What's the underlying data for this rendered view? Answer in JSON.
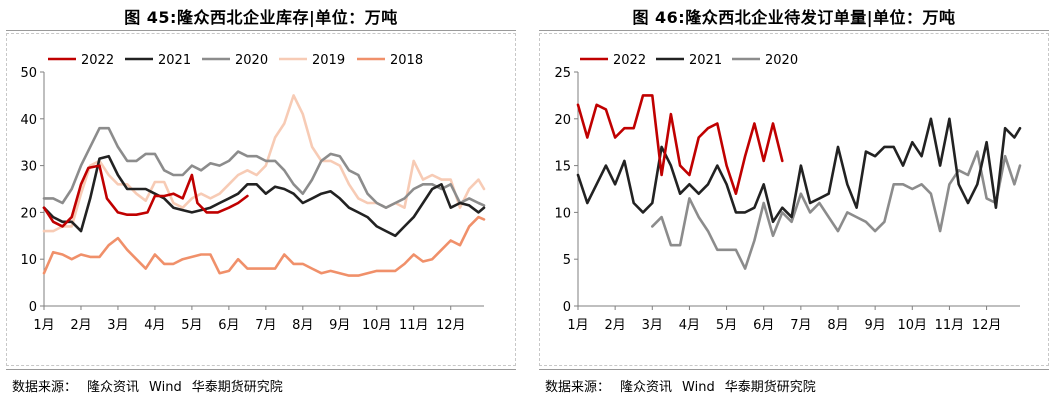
{
  "charts": [
    {
      "title": "图 45:隆众西北企业库存|单位：万吨",
      "source_label": "数据来源：",
      "source_items": [
        "隆众资讯",
        "Wind",
        "华泰期货研究院"
      ]
    },
    {
      "title": "图 46:隆众西北企业待发订单量|单位：万吨",
      "source_label": "数据来源：",
      "source_items": [
        "隆众资讯",
        "Wind",
        "华泰期货研究院"
      ]
    }
  ],
  "chart_data": [
    {
      "type": "line",
      "title": "图 45:隆众西北企业库存|单位：万吨",
      "xlabel": "",
      "ylabel": "",
      "x_ticks": [
        "1月",
        "2月",
        "3月",
        "4月",
        "5月",
        "6月",
        "7月",
        "8月",
        "9月",
        "10月",
        "11月",
        "12月"
      ],
      "x_range": [
        1,
        12.9
      ],
      "ylim": [
        0,
        50
      ],
      "y_ticks": [
        0,
        10,
        20,
        30,
        40,
        50
      ],
      "grid": false,
      "legend_position": "top",
      "series": [
        {
          "name": "2022",
          "color": "#c00000",
          "x": [
            1,
            1.25,
            1.5,
            1.75,
            2,
            2.2,
            2.5,
            2.7,
            3,
            3.25,
            3.5,
            3.8,
            4,
            4.25,
            4.5,
            4.75,
            5,
            5.15,
            5.4,
            5.7,
            6,
            6.25,
            6.5
          ],
          "y": [
            21,
            18,
            17,
            19,
            26,
            29.5,
            30,
            23,
            20,
            19.5,
            19.5,
            20,
            23.5,
            23.5,
            24,
            23,
            28,
            22,
            20,
            20,
            21,
            22,
            23.5
          ]
        },
        {
          "name": "2021",
          "color": "#222222",
          "x": [
            1,
            1.25,
            1.5,
            1.75,
            2,
            2.25,
            2.5,
            2.75,
            3,
            3.25,
            3.5,
            3.75,
            4,
            4.25,
            4.5,
            4.75,
            5,
            5.25,
            5.5,
            5.75,
            6,
            6.25,
            6.5,
            6.75,
            7,
            7.25,
            7.5,
            7.75,
            8,
            8.25,
            8.5,
            8.75,
            9,
            9.25,
            9.5,
            9.75,
            10,
            10.25,
            10.5,
            10.75,
            11,
            11.25,
            11.5,
            11.75,
            12,
            12.25,
            12.5,
            12.75,
            12.9
          ],
          "y": [
            21,
            19,
            18,
            18,
            16,
            23,
            31.5,
            32,
            28,
            25,
            25,
            25,
            24,
            23,
            21,
            20.5,
            20,
            20.5,
            21,
            22,
            23,
            24,
            26,
            26,
            24,
            25.5,
            25,
            24,
            22,
            23,
            24,
            24.5,
            23,
            21,
            20,
            19,
            17,
            16,
            15,
            17,
            19,
            22,
            25,
            26,
            21,
            22,
            21.5,
            20,
            21
          ]
        },
        {
          "name": "2020",
          "color": "#8c8c8c",
          "x": [
            1,
            1.25,
            1.5,
            1.75,
            2,
            2.25,
            2.5,
            2.75,
            3,
            3.25,
            3.5,
            3.75,
            4,
            4.25,
            4.5,
            4.75,
            5,
            5.25,
            5.5,
            5.75,
            6,
            6.25,
            6.5,
            6.75,
            7,
            7.25,
            7.5,
            7.75,
            8,
            8.25,
            8.5,
            8.75,
            9,
            9.25,
            9.5,
            9.75,
            10,
            10.25,
            10.5,
            10.75,
            11,
            11.25,
            11.5,
            11.75,
            12,
            12.25,
            12.5,
            12.75,
            12.9
          ],
          "y": [
            23,
            23,
            22,
            25,
            30,
            34,
            38,
            38,
            34,
            31,
            31,
            32.5,
            32.5,
            29,
            28,
            28,
            30,
            29,
            30.5,
            30,
            31,
            33,
            32,
            32,
            31,
            31,
            29,
            26,
            24,
            27,
            31,
            32.5,
            32,
            29,
            28,
            24,
            22,
            21,
            22,
            23,
            25,
            26,
            26,
            25,
            26,
            22,
            23,
            22,
            21.5
          ]
        },
        {
          "name": "2019",
          "color": "#f7cbb5",
          "x": [
            1,
            1.25,
            1.5,
            1.75,
            2,
            2.25,
            2.5,
            2.75,
            3,
            3.25,
            3.5,
            3.75,
            4,
            4.25,
            4.5,
            4.75,
            5,
            5.25,
            5.5,
            5.75,
            6,
            6.25,
            6.5,
            6.75,
            7,
            7.25,
            7.5,
            7.75,
            8,
            8.25,
            8.5,
            8.75,
            9,
            9.25,
            9.5,
            9.75,
            10,
            10.25,
            10.5,
            10.75,
            11,
            11.25,
            11.5,
            11.75,
            12,
            12.25,
            12.5,
            12.75,
            12.9
          ],
          "y": [
            16,
            16,
            17,
            17,
            24,
            30,
            31,
            28,
            26,
            26,
            24,
            22.5,
            26.5,
            26.5,
            22,
            21,
            23,
            24,
            23,
            24,
            26,
            28,
            29,
            28,
            30,
            36,
            39,
            45,
            41,
            34,
            31,
            31,
            30,
            26,
            23,
            22,
            22,
            21,
            22,
            21,
            31,
            27,
            28,
            27,
            27,
            21,
            25,
            27,
            25
          ]
        },
        {
          "name": "2018",
          "color": "#f0906a",
          "x": [
            1,
            1.25,
            1.5,
            1.75,
            2,
            2.25,
            2.5,
            2.75,
            3,
            3.25,
            3.5,
            3.75,
            4,
            4.25,
            4.5,
            4.75,
            5,
            5.25,
            5.5,
            5.75,
            6,
            6.25,
            6.5,
            6.75,
            7,
            7.25,
            7.5,
            7.75,
            8,
            8.25,
            8.5,
            8.75,
            9,
            9.25,
            9.5,
            9.75,
            10,
            10.25,
            10.5,
            10.75,
            11,
            11.25,
            11.5,
            11.75,
            12,
            12.25,
            12.5,
            12.75,
            12.9
          ],
          "y": [
            7,
            11.5,
            11,
            10,
            11,
            10.5,
            10.5,
            13,
            14.5,
            12,
            10,
            8,
            11,
            9,
            9,
            10,
            10.5,
            11,
            11,
            7,
            7.5,
            10,
            8,
            8,
            8,
            8,
            11,
            9,
            9,
            8,
            7,
            7.5,
            7,
            6.5,
            6.5,
            7,
            7.5,
            7.5,
            7.5,
            9,
            11,
            9.5,
            10,
            12,
            14,
            13,
            17,
            19,
            18.5
          ]
        }
      ]
    },
    {
      "type": "line",
      "title": "图 46:隆众西北企业待发订单量|单位：万吨",
      "xlabel": "",
      "ylabel": "",
      "x_ticks": [
        "1月",
        "2月",
        "3月",
        "4月",
        "5月",
        "6月",
        "7月",
        "8月",
        "9月",
        "10月",
        "11月",
        "12月"
      ],
      "x_range": [
        1,
        12.9
      ],
      "ylim": [
        0,
        25
      ],
      "y_ticks": [
        0,
        5,
        10,
        15,
        20,
        25
      ],
      "grid": false,
      "legend_position": "top",
      "series": [
        {
          "name": "2022",
          "color": "#c00000",
          "x": [
            1,
            1.25,
            1.5,
            1.75,
            2,
            2.25,
            2.5,
            2.75,
            3,
            3.25,
            3.5,
            3.75,
            4,
            4.25,
            4.5,
            4.75,
            5,
            5.25,
            5.5,
            5.75,
            6,
            6.25,
            6.5
          ],
          "y": [
            21.5,
            18,
            21.5,
            21,
            18,
            19,
            19,
            22.5,
            22.5,
            14,
            20.5,
            15,
            14,
            18,
            19,
            19.5,
            15,
            12,
            16,
            19.5,
            15.5,
            19.5,
            15.5
          ]
        },
        {
          "name": "2021",
          "color": "#222222",
          "x": [
            1,
            1.25,
            1.5,
            1.75,
            2,
            2.25,
            2.5,
            2.75,
            3,
            3.25,
            3.5,
            3.75,
            4,
            4.25,
            4.5,
            4.75,
            5,
            5.25,
            5.5,
            5.75,
            6,
            6.25,
            6.5,
            6.75,
            7,
            7.25,
            7.5,
            7.75,
            8,
            8.25,
            8.5,
            8.75,
            9,
            9.25,
            9.5,
            9.75,
            10,
            10.25,
            10.5,
            10.75,
            11,
            11.25,
            11.5,
            11.75,
            12,
            12.25,
            12.5,
            12.75,
            12.9
          ],
          "y": [
            14,
            11,
            13,
            15,
            13,
            15.5,
            11,
            10,
            11,
            17,
            15,
            12,
            13,
            12,
            13,
            15,
            13,
            10,
            10,
            10.5,
            13,
            9,
            10.5,
            9.5,
            15,
            11,
            11.5,
            12,
            17,
            13,
            10.5,
            16.5,
            16,
            17,
            17,
            15,
            17.5,
            16,
            20,
            15,
            20,
            13,
            11,
            13,
            17.5,
            10.5,
            19,
            18,
            19
          ]
        },
        {
          "name": "2020",
          "color": "#8c8c8c",
          "x": [
            1,
            1.25,
            1.5,
            1.75,
            2,
            2.25,
            2.5,
            2.75,
            3,
            3.25,
            3.5,
            3.75,
            4,
            4.25,
            4.5,
            4.75,
            5,
            5.25,
            5.5,
            5.75,
            6,
            6.25,
            6.5,
            6.75,
            7,
            7.25,
            7.5,
            7.75,
            8,
            8.25,
            8.5,
            8.75,
            9,
            9.25,
            9.5,
            9.75,
            10,
            10.25,
            10.5,
            10.75,
            11,
            11.25,
            11.5,
            11.75,
            12,
            12.25,
            12.5,
            12.75,
            12.9
          ],
          "y": [
            null,
            null,
            null,
            null,
            null,
            null,
            null,
            null,
            8.5,
            9.5,
            6.5,
            6.5,
            11.5,
            9.5,
            8,
            6,
            6,
            6,
            4,
            7,
            11,
            7.5,
            10,
            9,
            12,
            10,
            11,
            9.5,
            8,
            10,
            9.5,
            9,
            8,
            9,
            13,
            13,
            12.5,
            13,
            12,
            8,
            13,
            14.5,
            14,
            16.5,
            11.5,
            11,
            16,
            13,
            15
          ]
        }
      ]
    }
  ]
}
